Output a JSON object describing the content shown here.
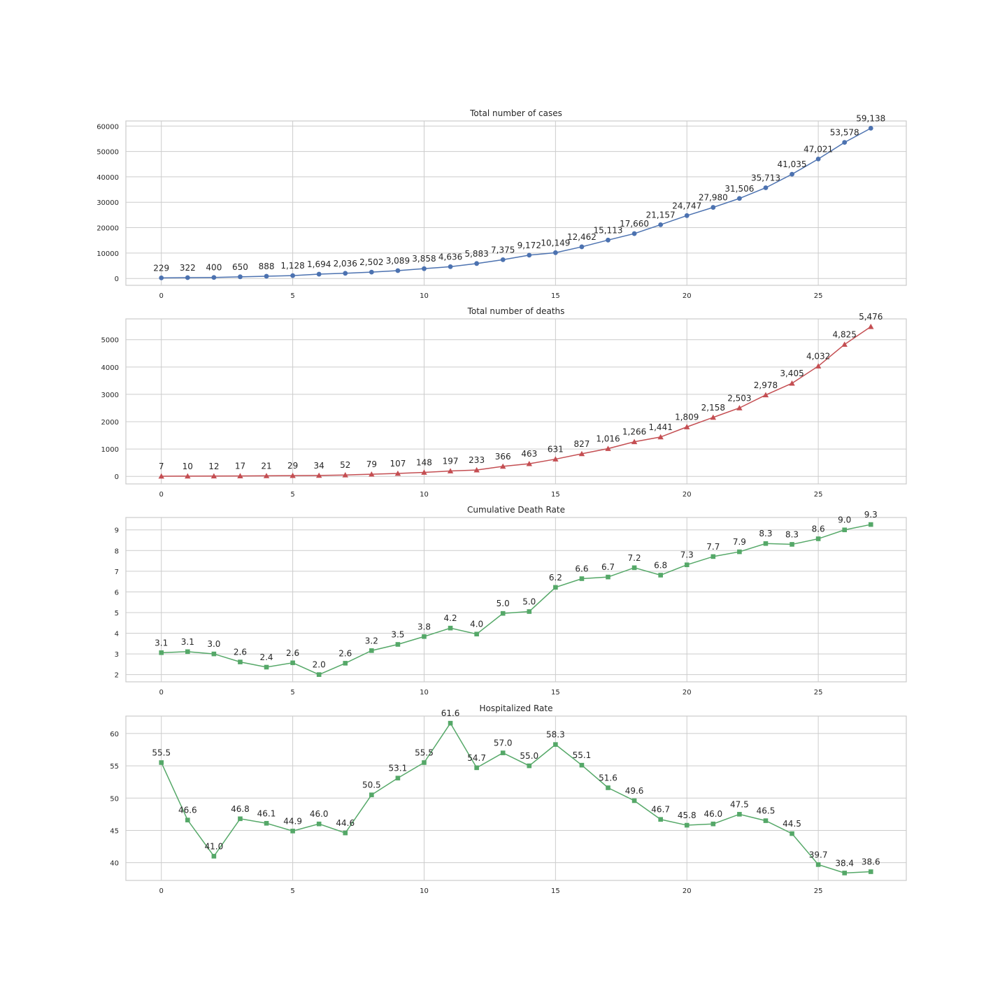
{
  "chart_data": [
    {
      "type": "line",
      "title": "Total number of cases",
      "xlabel": "",
      "ylabel": "",
      "x": [
        0,
        1,
        2,
        3,
        4,
        5,
        6,
        7,
        8,
        9,
        10,
        11,
        12,
        13,
        14,
        15,
        16,
        17,
        18,
        19,
        20,
        21,
        22,
        23,
        24,
        25,
        26,
        27
      ],
      "values": [
        229,
        322,
        400,
        650,
        888,
        1128,
        1694,
        2036,
        2502,
        3089,
        3858,
        4636,
        5883,
        7375,
        9172,
        10149,
        12462,
        15113,
        17660,
        21157,
        24747,
        27980,
        31506,
        35713,
        41035,
        47021,
        53578,
        59138
      ],
      "labels": [
        "229",
        "322",
        "400",
        "650",
        "888",
        "1,128",
        "1,694",
        "2,036",
        "2,502",
        "3,089",
        "3,858",
        "4,636",
        "5,883",
        "7,375",
        "9,172",
        "10,149",
        "12,462",
        "15,113",
        "17,660",
        "21,157",
        "24,747",
        "27,980",
        "31,506",
        "35,713",
        "41,035",
        "47,021",
        "53,578",
        "59,138"
      ],
      "xticks": [
        0,
        5,
        10,
        15,
        20,
        25
      ],
      "yticks": [
        0,
        10000,
        20000,
        30000,
        40000,
        50000,
        60000
      ],
      "xlim": [
        -1.35,
        28.35
      ],
      "ylim": [
        -2700,
        62000
      ],
      "marker": "circle",
      "color": "#4c72b0",
      "grid": true
    },
    {
      "type": "line",
      "title": "Total number of deaths",
      "xlabel": "",
      "ylabel": "",
      "x": [
        0,
        1,
        2,
        3,
        4,
        5,
        6,
        7,
        8,
        9,
        10,
        11,
        12,
        13,
        14,
        15,
        16,
        17,
        18,
        19,
        20,
        21,
        22,
        23,
        24,
        25,
        26,
        27
      ],
      "values": [
        7,
        10,
        12,
        17,
        21,
        29,
        34,
        52,
        79,
        107,
        148,
        197,
        233,
        366,
        463,
        631,
        827,
        1016,
        1266,
        1441,
        1809,
        2158,
        2503,
        2978,
        3405,
        4032,
        4825,
        5476
      ],
      "labels": [
        "7",
        "10",
        "12",
        "17",
        "21",
        "29",
        "34",
        "52",
        "79",
        "107",
        "148",
        "197",
        "233",
        "366",
        "463",
        "631",
        "827",
        "1,016",
        "1,266",
        "1,441",
        "1,809",
        "2,158",
        "2,503",
        "2,978",
        "3,405",
        "4,032",
        "4,825",
        "5,476"
      ],
      "xticks": [
        0,
        5,
        10,
        15,
        20,
        25
      ],
      "yticks": [
        0,
        1000,
        2000,
        3000,
        4000,
        5000
      ],
      "xlim": [
        -1.35,
        28.35
      ],
      "ylim": [
        -275,
        5760
      ],
      "marker": "triangle",
      "color": "#c44e52",
      "grid": true
    },
    {
      "type": "line",
      "title": "Cumulative Death Rate",
      "xlabel": "",
      "ylabel": "",
      "x": [
        0,
        1,
        2,
        3,
        4,
        5,
        6,
        7,
        8,
        9,
        10,
        11,
        12,
        13,
        14,
        15,
        16,
        17,
        18,
        19,
        20,
        21,
        22,
        23,
        24,
        25,
        26,
        27
      ],
      "values": [
        3.06,
        3.11,
        3.0,
        2.61,
        2.36,
        2.57,
        2.0,
        2.55,
        3.16,
        3.46,
        3.84,
        4.25,
        3.96,
        4.96,
        5.05,
        6.22,
        6.64,
        6.72,
        7.17,
        6.81,
        7.31,
        7.71,
        7.94,
        8.34,
        8.3,
        8.57,
        9.0,
        9.26
      ],
      "labels": [
        "3.1",
        "3.1",
        "3.0",
        "2.6",
        "2.4",
        "2.6",
        "2.0",
        "2.6",
        "3.2",
        "3.5",
        "3.8",
        "4.2",
        "4.0",
        "5.0",
        "5.0",
        "6.2",
        "6.6",
        "6.7",
        "7.2",
        "6.8",
        "7.3",
        "7.7",
        "7.9",
        "8.3",
        "8.3",
        "8.6",
        "9.0",
        "9.3"
      ],
      "xticks": [
        0,
        5,
        10,
        15,
        20,
        25
      ],
      "yticks": [
        2,
        3,
        4,
        5,
        6,
        7,
        8,
        9
      ],
      "xlim": [
        -1.35,
        28.35
      ],
      "ylim": [
        1.65,
        9.6
      ],
      "marker": "square",
      "color": "#55a868",
      "grid": true
    },
    {
      "type": "line",
      "title": "Hospitalized Rate",
      "xlabel": "",
      "ylabel": "",
      "x": [
        0,
        1,
        2,
        3,
        4,
        5,
        6,
        7,
        8,
        9,
        10,
        11,
        12,
        13,
        14,
        15,
        16,
        17,
        18,
        19,
        20,
        21,
        22,
        23,
        24,
        25,
        26,
        27
      ],
      "values": [
        55.5,
        46.6,
        41.0,
        46.8,
        46.1,
        44.9,
        46.0,
        44.6,
        50.5,
        53.1,
        55.5,
        61.6,
        54.7,
        57.0,
        55.0,
        58.3,
        55.1,
        51.6,
        49.6,
        46.7,
        45.8,
        46.0,
        47.5,
        46.5,
        44.5,
        39.7,
        38.4,
        38.6
      ],
      "labels": [
        "55.5",
        "46.6",
        "41.0",
        "46.8",
        "46.1",
        "44.9",
        "46.0",
        "44.6",
        "50.5",
        "53.1",
        "55.5",
        "61.6",
        "54.7",
        "57.0",
        "55.0",
        "58.3",
        "55.1",
        "51.6",
        "49.6",
        "46.7",
        "45.8",
        "46.0",
        "47.5",
        "46.5",
        "44.5",
        "39.7",
        "38.4",
        "38.6"
      ],
      "xticks": [
        0,
        5,
        10,
        15,
        20,
        25
      ],
      "yticks": [
        40,
        45,
        50,
        55,
        60
      ],
      "xlim": [
        -1.35,
        28.35
      ],
      "ylim": [
        37.25,
        62.7
      ],
      "marker": "square",
      "color": "#55a868",
      "grid": true
    }
  ]
}
